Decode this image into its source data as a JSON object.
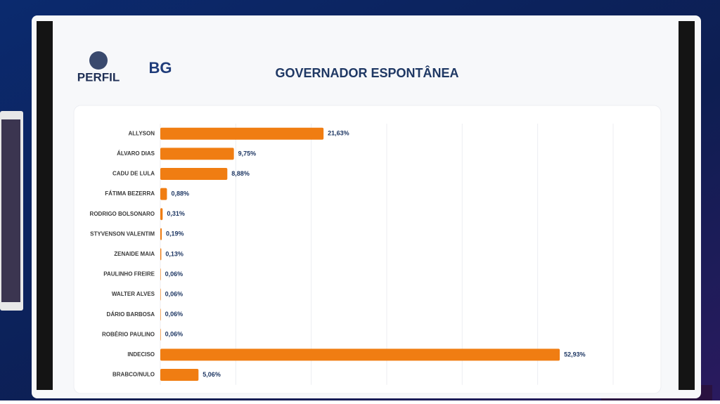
{
  "logos": [
    "PERFIL",
    "BG"
  ],
  "chart_data": {
    "type": "barh",
    "title": "GOVERNADOR ESPONTÂNEA",
    "categories": [
      "ALLYSON",
      "ÁLVARO DIAS",
      "CADU DE LULA",
      "FÁTIMA BEZERRA",
      "RODRIGO BOLSONARO",
      "STYVENSON VALENTIM",
      "ZENAIDE MAIA",
      "PAULINHO FREIRE",
      "WALTER ALVES",
      "DÁRIO BARBOSA",
      "ROBÉRIO PAULINO",
      "INDECISO",
      "BRABCO/NULO"
    ],
    "values": [
      21.63,
      9.75,
      8.88,
      0.88,
      0.31,
      0.19,
      0.13,
      0.06,
      0.06,
      0.06,
      0.06,
      52.93,
      5.06
    ],
    "value_labels": [
      "21,63%",
      "9,75%",
      "8,88%",
      "0,88%",
      "0,31%",
      "0,19%",
      "0,13%",
      "0,06%",
      "0,06%",
      "0,06%",
      "0,06%",
      "52,93%",
      "5,06%"
    ],
    "color": "#f07d12",
    "xlim": [
      0,
      60
    ],
    "xticks": [
      0,
      10,
      20,
      30,
      40,
      50,
      60
    ],
    "grid": true
  }
}
